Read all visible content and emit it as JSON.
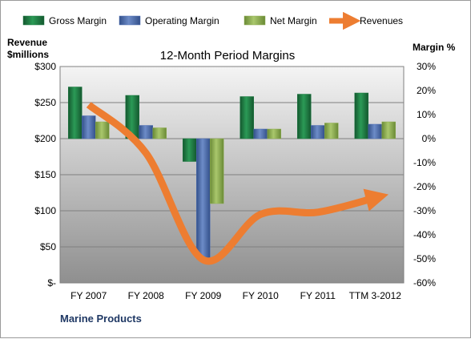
{
  "chart_data": {
    "type": "bar",
    "title": "12-Month Period Margins",
    "left_axis": {
      "title_line1": "Revenue",
      "title_line2": "$millions",
      "range": [
        0,
        300
      ],
      "ticks": [
        0,
        50,
        100,
        150,
        200,
        250,
        300
      ],
      "tick_labels": [
        "$-",
        "$50",
        "$100",
        "$150",
        "$200",
        "$250",
        "$300"
      ]
    },
    "right_axis": {
      "title": "Margin %",
      "range": [
        -60,
        30
      ],
      "ticks": [
        30,
        20,
        10,
        0,
        -10,
        -20,
        -30,
        -40,
        -50,
        -60
      ],
      "tick_labels": [
        "30%",
        "20%",
        "10%",
        "0%",
        "-10%",
        "-20%",
        "-30%",
        "-40%",
        "-50%",
        "-60%"
      ]
    },
    "categories": [
      "FY 2007",
      "FY 2008",
      "FY 2009",
      "FY 2010",
      "FY 2011",
      "TTM 3-2012"
    ],
    "series": [
      {
        "name": "Gross Margin",
        "type": "bar",
        "axis": "right",
        "color": "#1e7a43",
        "values": [
          21.5,
          18.0,
          -9.5,
          17.5,
          18.5,
          19.0
        ]
      },
      {
        "name": "Operating Margin",
        "type": "bar",
        "axis": "right",
        "color": "#4f6fb3",
        "values": [
          9.5,
          5.5,
          -50.0,
          4.0,
          5.5,
          6.0
        ]
      },
      {
        "name": "Net Margin",
        "type": "bar",
        "axis": "right",
        "color": "#8fae52",
        "values": [
          7.0,
          4.5,
          -27.0,
          4.0,
          6.5,
          7.0
        ]
      },
      {
        "name": "Revenues",
        "type": "line",
        "axis": "left",
        "color": "#ed7d31",
        "values": [
          247,
          180,
          32,
          95,
          98,
          118
        ]
      }
    ],
    "grid": true,
    "legend_position": "top",
    "company": "Marine Products"
  }
}
